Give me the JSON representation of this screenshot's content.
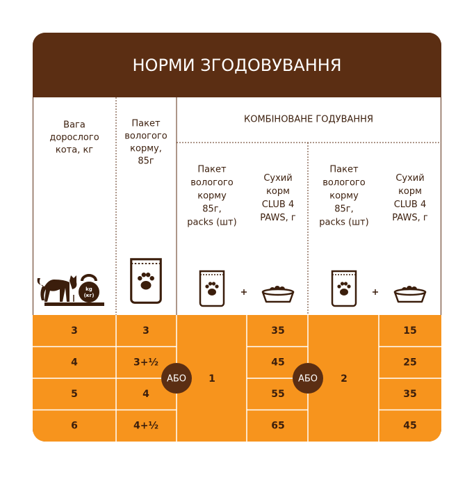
{
  "title": "НОРМИ ЗГОДОВУВАННЯ",
  "headers": {
    "weight": [
      "Вага",
      "дорослого",
      "кота, кг"
    ],
    "wet": [
      "Пакет",
      "вологого",
      "корму,",
      "85г"
    ],
    "combined": "КОМБІНОВАНЕ ГОДУВАННЯ"
  },
  "kettlebell": [
    "kg",
    "(кг)"
  ],
  "groups": [
    {
      "wet_header": [
        "Пакет",
        "вологого",
        "корму",
        "85г,",
        "packs (шт)"
      ],
      "dry_header": [
        "Сухий",
        "корм",
        "CLUB 4",
        "PAWS, г"
      ],
      "or": "АБО",
      "packs": 1
    },
    {
      "wet_header": [
        "Пакет",
        "вологого",
        "корму",
        "85г,",
        "packs (шт)"
      ],
      "dry_header": [
        "Сухий",
        "корм",
        "CLUB 4",
        "PAWS, г"
      ],
      "or": "АБО",
      "packs": 2
    }
  ],
  "rows": [
    {
      "weight": 3,
      "wet": "3",
      "dry": [
        35,
        15
      ]
    },
    {
      "weight": 4,
      "wet": "3+½",
      "dry": [
        45,
        25
      ]
    },
    {
      "weight": 5,
      "wet": "4",
      "dry": [
        55,
        35
      ]
    },
    {
      "weight": 6,
      "wet": "4+½",
      "dry": [
        65,
        45
      ]
    }
  ]
}
